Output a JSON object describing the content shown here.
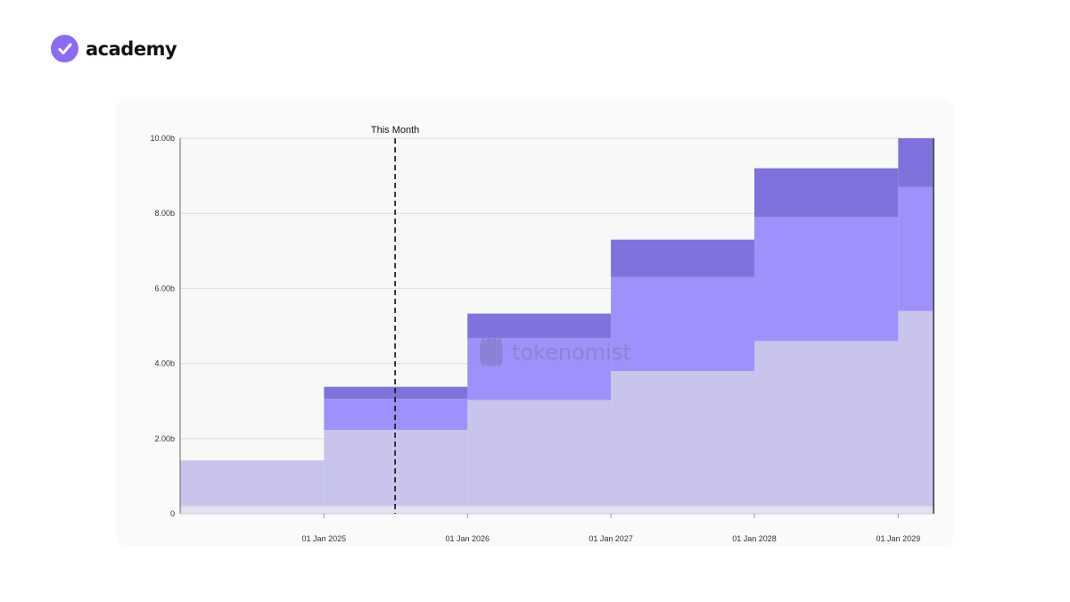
{
  "brand": {
    "name": "academy",
    "logo_icon": "check-badge-icon",
    "color": "#8b6cf0"
  },
  "watermark": {
    "text": "tokenomist",
    "icon": "tokenomist-logo-icon",
    "color": "#8b7fd0"
  },
  "chart_data": {
    "type": "area",
    "stacked": true,
    "step": true,
    "x": [
      "2024-01-01",
      "2025-01-01",
      "2026-01-01",
      "2027-01-01",
      "2028-01-01",
      "2029-01-01",
      "2029-04-01"
    ],
    "series": [
      {
        "color": "#e4e1f4",
        "values": [
          0.2,
          0.2,
          0.2,
          0.2,
          0.2,
          0.2,
          0.2
        ]
      },
      {
        "color": "#c8c4ec",
        "values": [
          1.22,
          2.03,
          2.83,
          3.6,
          4.4,
          5.2,
          5.2
        ]
      },
      {
        "color": "#9e91f9",
        "values": [
          0.0,
          0.83,
          1.65,
          2.5,
          3.3,
          3.3,
          3.3
        ]
      },
      {
        "color": "#7e72db",
        "values": [
          0.0,
          0.32,
          0.65,
          1.0,
          1.3,
          1.3,
          1.3
        ]
      }
    ],
    "ylim": [
      0,
      10
    ],
    "y_ticks": [
      0,
      2,
      4,
      6,
      8,
      10
    ],
    "y_tick_labels": [
      "0",
      "2.00b",
      "4.00b",
      "6.00b",
      "8.00b",
      "10.00b"
    ],
    "x_ticks": [
      "2025-01-01",
      "2026-01-01",
      "2027-01-01",
      "2028-01-01",
      "2029-01-01"
    ],
    "x_tick_labels": [
      "01 Jan 2025",
      "01 Jan 2026",
      "01 Jan 2027",
      "01 Jan 2028",
      "01 Jan 2029"
    ],
    "xlim": [
      "2024-01-01",
      "2029-04-01"
    ],
    "grid": true,
    "annotation": {
      "date": "2025-07-01",
      "label": "This Month",
      "style": "dashed"
    }
  }
}
